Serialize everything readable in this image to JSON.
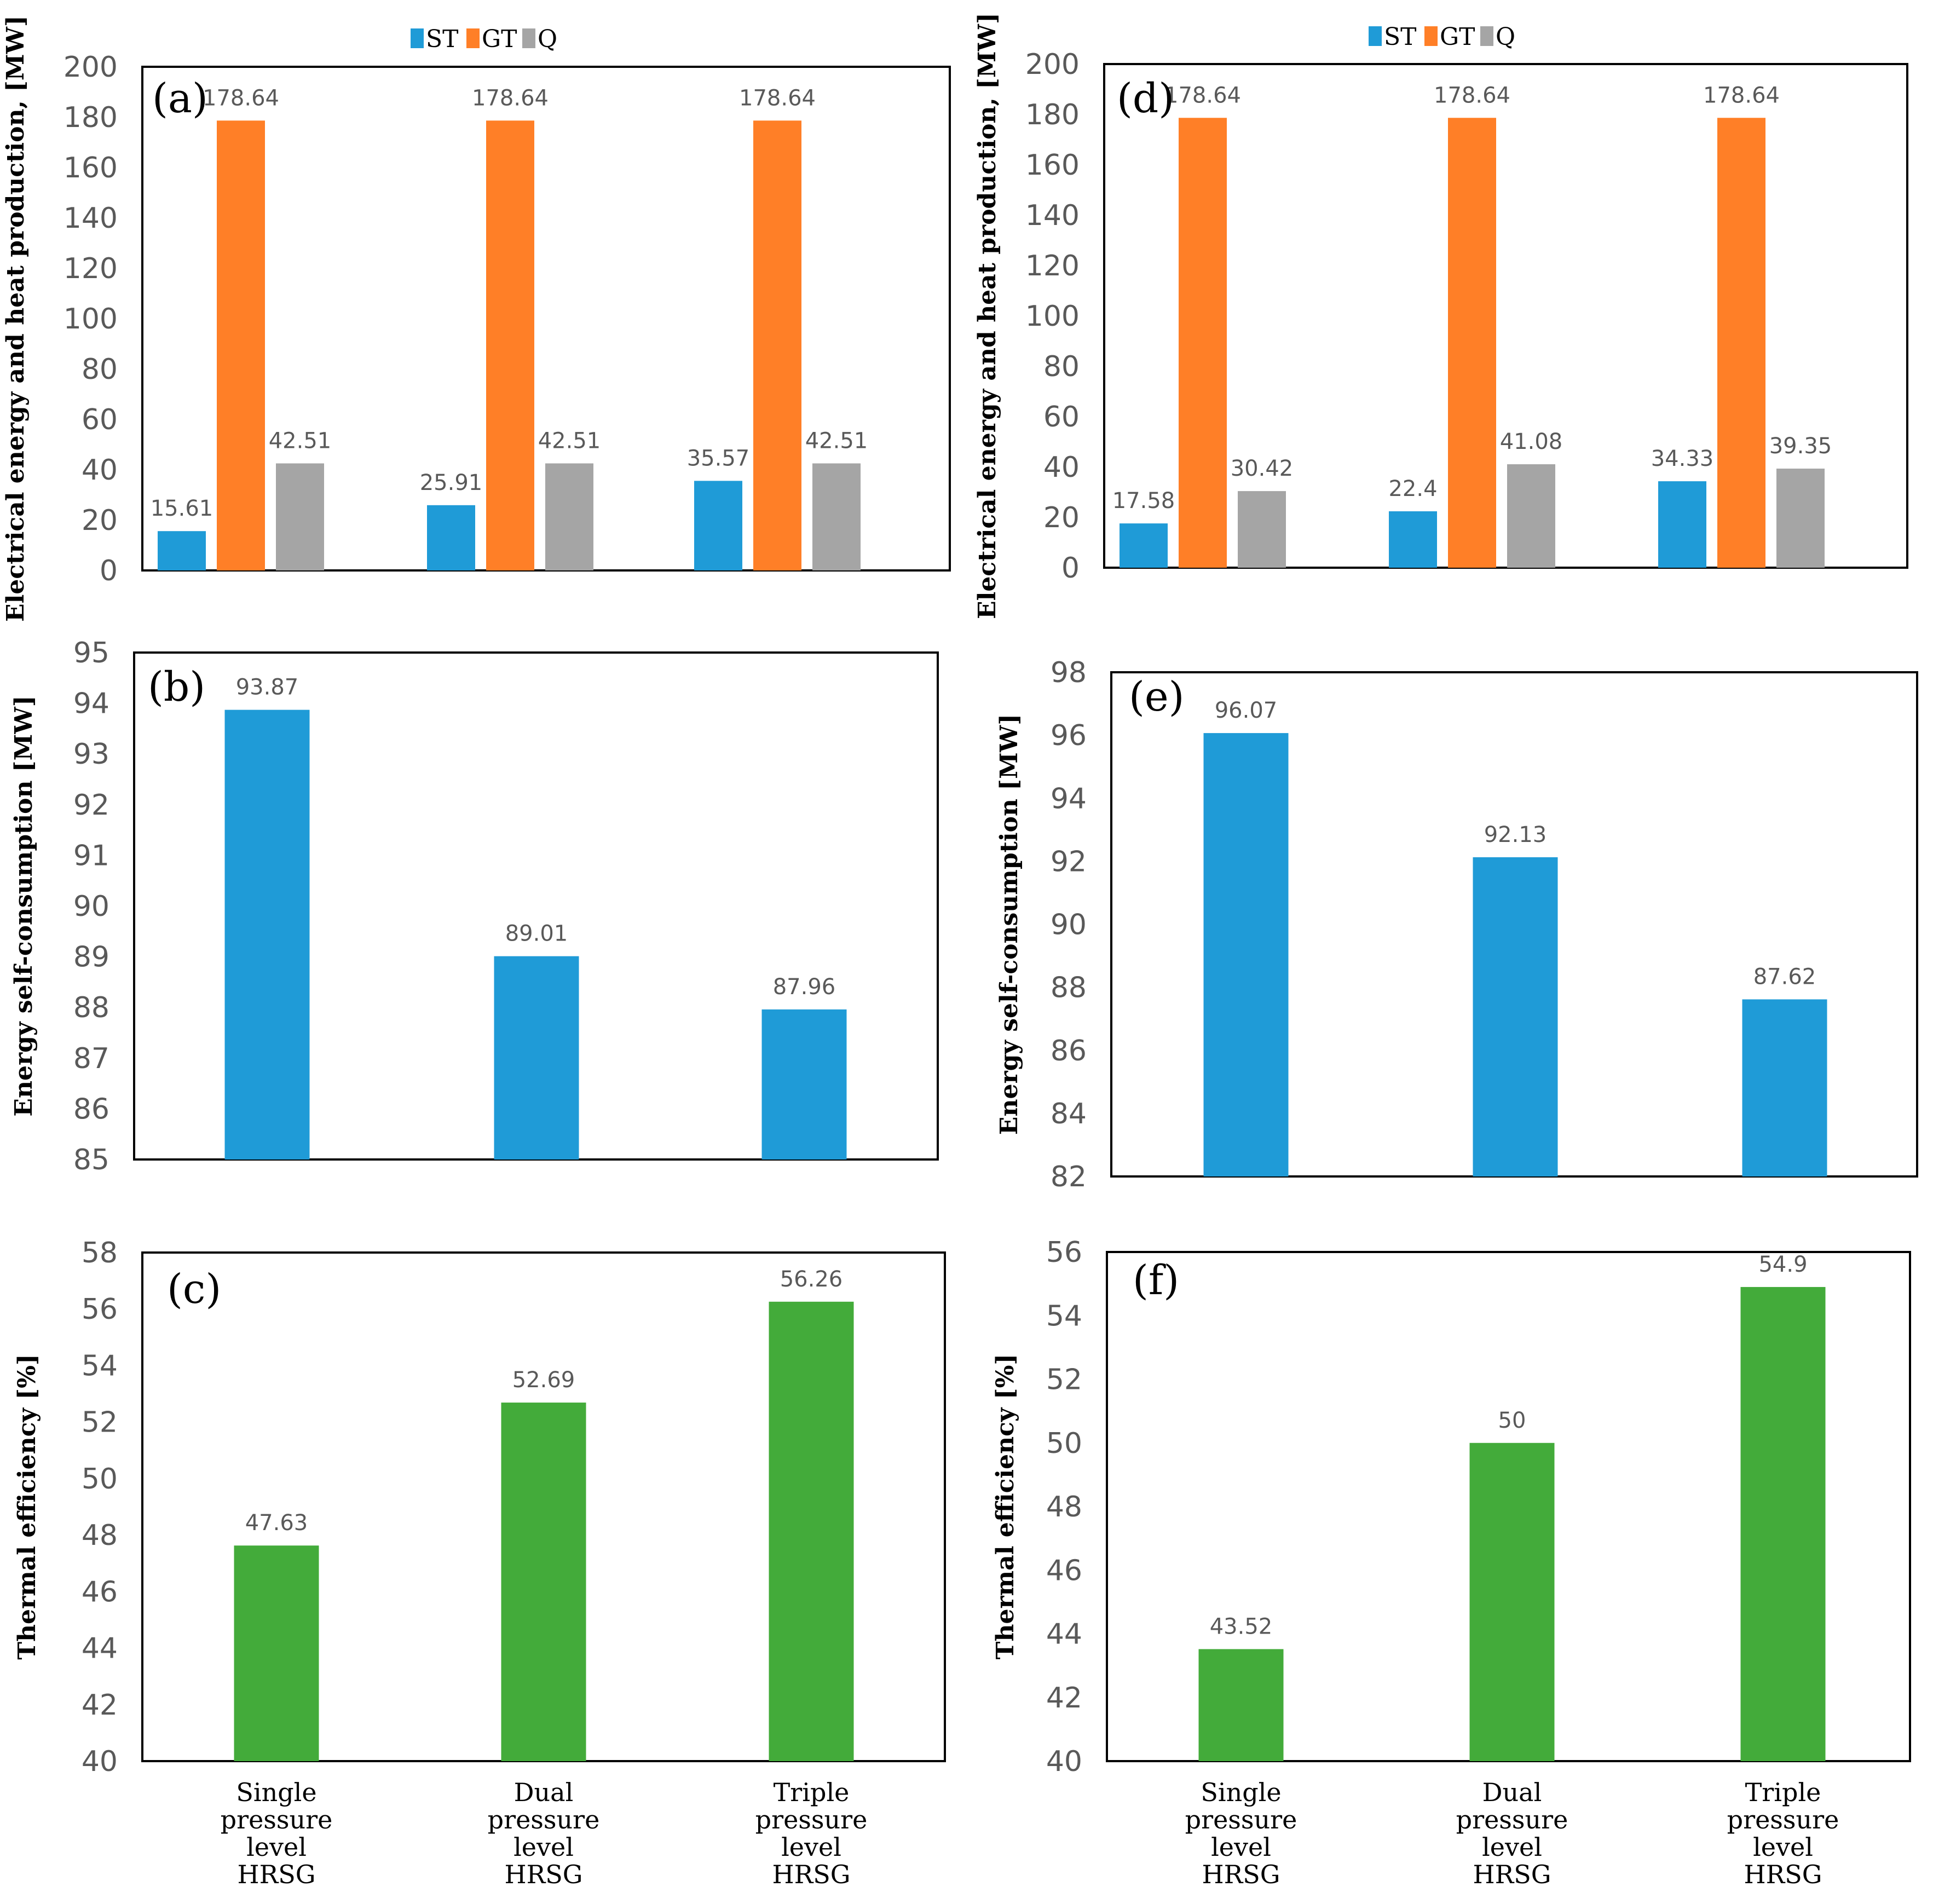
{
  "colors": {
    "ST": "#1F9BD7",
    "GT": "#FF7F27",
    "Q": "#A5A5A5",
    "selfcons": "#1F9BD7",
    "efficiency": "#43AB3A"
  },
  "categories": [
    [
      "Single",
      "pressure",
      "level",
      "HRSG"
    ],
    [
      "Dual",
      "pressure",
      "level",
      "HRSG"
    ],
    [
      "Triple",
      "pressure",
      "level",
      "HRSG"
    ]
  ],
  "chart_data": [
    {
      "id": "a",
      "panel_label": "(a)",
      "type": "bar",
      "ylabel": "Electrical energy and heat production, [MW]",
      "ylim": [
        0,
        200
      ],
      "yticks": [
        0,
        20,
        40,
        60,
        80,
        100,
        120,
        140,
        160,
        180,
        200
      ],
      "legend": [
        "ST",
        "GT",
        "Q"
      ],
      "legend_position": "top",
      "series": [
        {
          "name": "ST",
          "values": [
            15.61,
            25.91,
            35.57
          ],
          "labels": [
            "15.61",
            "25.91",
            "35.57"
          ]
        },
        {
          "name": "GT",
          "values": [
            178.64,
            178.64,
            178.64
          ],
          "labels": [
            "178.64",
            "178.64",
            "178.64"
          ]
        },
        {
          "name": "Q",
          "values": [
            42.51,
            42.51,
            42.51
          ],
          "labels": [
            "42.51",
            "42.51",
            "42.51"
          ]
        }
      ]
    },
    {
      "id": "b",
      "panel_label": "(b)",
      "type": "bar",
      "ylabel": "Energy self-consumption [MW]",
      "ylim": [
        85,
        95
      ],
      "yticks": [
        85,
        86,
        87,
        88,
        89,
        90,
        91,
        92,
        93,
        94,
        95
      ],
      "series": [
        {
          "name": "Self-consumption",
          "values": [
            93.87,
            89.01,
            87.96
          ],
          "labels": [
            "93.87",
            "89.01",
            "87.96"
          ]
        }
      ]
    },
    {
      "id": "c",
      "panel_label": "(c)",
      "type": "bar",
      "ylabel": "Thermal efficiency [%]",
      "ylim": [
        40,
        58
      ],
      "yticks": [
        40,
        42,
        44,
        46,
        48,
        50,
        52,
        54,
        56,
        58
      ],
      "series": [
        {
          "name": "Thermal efficiency",
          "values": [
            47.63,
            52.69,
            56.26
          ],
          "labels": [
            "47.63",
            "52.69",
            "56.26"
          ]
        }
      ]
    },
    {
      "id": "d",
      "panel_label": "(d)",
      "type": "bar",
      "ylabel": "Electrical energy and heat production, [MW]",
      "ylim": [
        0,
        200
      ],
      "yticks": [
        0,
        20,
        40,
        60,
        80,
        100,
        120,
        140,
        160,
        180,
        200
      ],
      "legend": [
        "ST",
        "GT",
        "Q"
      ],
      "legend_position": "top",
      "series": [
        {
          "name": "ST",
          "values": [
            17.58,
            22.4,
            34.33
          ],
          "labels": [
            "17.58",
            "22.4",
            "34.33"
          ]
        },
        {
          "name": "GT",
          "values": [
            178.64,
            178.64,
            178.64
          ],
          "labels": [
            "178.64",
            "178.64",
            "178.64"
          ]
        },
        {
          "name": "Q",
          "values": [
            30.42,
            41.08,
            39.35
          ],
          "labels": [
            "30.42",
            "41.08",
            "39.35"
          ]
        }
      ]
    },
    {
      "id": "e",
      "panel_label": "(e)",
      "type": "bar",
      "ylabel": "Energy self-consumption [MW]",
      "ylim": [
        82,
        98
      ],
      "yticks": [
        82,
        84,
        86,
        88,
        90,
        92,
        94,
        96,
        98
      ],
      "series": [
        {
          "name": "Self-consumption",
          "values": [
            96.07,
            92.13,
            87.62
          ],
          "labels": [
            "96.07",
            "92.13",
            "87.62"
          ]
        }
      ]
    },
    {
      "id": "f",
      "panel_label": "(f)",
      "type": "bar",
      "ylabel": "Thermal efficiency [%]",
      "ylim": [
        40,
        56
      ],
      "yticks": [
        40,
        42,
        44,
        46,
        48,
        50,
        52,
        54,
        56
      ],
      "series": [
        {
          "name": "Thermal efficiency",
          "values": [
            43.52,
            50,
            54.9
          ],
          "labels": [
            "43.52",
            "50",
            "54.9"
          ]
        }
      ]
    }
  ]
}
